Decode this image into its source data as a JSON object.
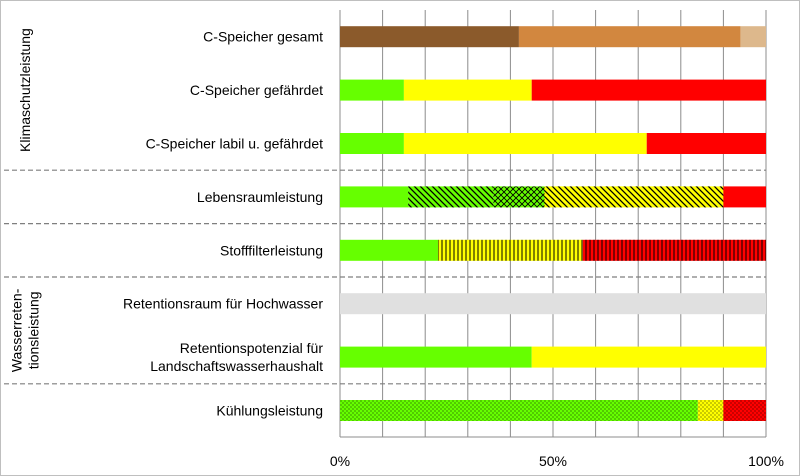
{
  "chart_data": {
    "type": "bar",
    "orientation": "horizontal",
    "stacked": true,
    "xlim": [
      0,
      100
    ],
    "x_ticks": [
      "0%",
      "50%",
      "100%"
    ],
    "grid": "vertical every 10%",
    "group_labels": [
      {
        "text": "Klimaschutzleistung",
        "lines": [
          "Klimaschutzleistung"
        ],
        "rows": [
          0,
          2
        ]
      },
      {
        "text": "Wasserretentionsleistung",
        "lines": [
          "Wasserreten-",
          "tionsleistung"
        ],
        "rows": [
          5,
          6
        ]
      }
    ],
    "separators_after_rows": [
      2,
      3,
      4,
      6
    ],
    "categories": [
      {
        "lines": [
          "C-Speicher gesamt"
        ],
        "segments": [
          {
            "value": 42,
            "color": "#8B5A2B",
            "pattern": "solid"
          },
          {
            "value": 52,
            "color": "#D2873F",
            "pattern": "solid"
          },
          {
            "value": 6,
            "color": "#DDB88C",
            "pattern": "solid"
          }
        ]
      },
      {
        "lines": [
          "C-Speicher gefährdet"
        ],
        "segments": [
          {
            "value": 15,
            "color": "#66FF00",
            "pattern": "solid"
          },
          {
            "value": 30,
            "color": "#FFFF00",
            "pattern": "solid"
          },
          {
            "value": 55,
            "color": "#FF0000",
            "pattern": "solid"
          }
        ]
      },
      {
        "lines": [
          "C-Speicher labil u. gefährdet"
        ],
        "segments": [
          {
            "value": 15,
            "color": "#66FF00",
            "pattern": "solid"
          },
          {
            "value": 57,
            "color": "#FFFF00",
            "pattern": "solid"
          },
          {
            "value": 28,
            "color": "#FF0000",
            "pattern": "solid"
          }
        ]
      },
      {
        "lines": [
          "Lebensraumleistung"
        ],
        "segments": [
          {
            "value": 16,
            "color": "#66FF00",
            "pattern": "solid"
          },
          {
            "value": 20,
            "color": "#66FF00",
            "pattern": "diagonal-down"
          },
          {
            "value": 12,
            "color": "#66FF00",
            "pattern": "crosshatch"
          },
          {
            "value": 42,
            "color": "#FFFF00",
            "pattern": "diagonal-down"
          },
          {
            "value": 10,
            "color": "#FF0000",
            "pattern": "solid"
          }
        ]
      },
      {
        "lines": [
          "Stofffilterleistung"
        ],
        "segments": [
          {
            "value": 23,
            "color": "#66FF00",
            "pattern": "solid"
          },
          {
            "value": 34,
            "color": "#FFFF00",
            "pattern": "vertical"
          },
          {
            "value": 43,
            "color": "#FF0000",
            "pattern": "vertical"
          }
        ]
      },
      {
        "lines": [
          "Retentionsraum für Hochwasser"
        ],
        "segments": [
          {
            "value": 100,
            "color": "#E0E0E0",
            "pattern": "solid"
          }
        ]
      },
      {
        "lines": [
          "Retentionspotenzial für",
          "Landschaftswasserhaushalt"
        ],
        "segments": [
          {
            "value": 45,
            "color": "#66FF00",
            "pattern": "solid"
          },
          {
            "value": 55,
            "color": "#FFFF00",
            "pattern": "solid"
          }
        ]
      },
      {
        "lines": [
          "Kühlungsleistung"
        ],
        "segments": [
          {
            "value": 84,
            "color": "#66FF00",
            "pattern": "dots"
          },
          {
            "value": 6,
            "color": "#FFFF00",
            "pattern": "dots"
          },
          {
            "value": 10,
            "color": "#FF0000",
            "pattern": "dots"
          }
        ]
      }
    ]
  }
}
